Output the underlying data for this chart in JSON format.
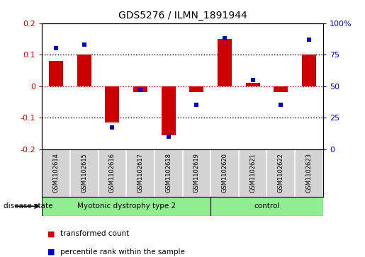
{
  "title": "GDS5276 / ILMN_1891944",
  "samples": [
    "GSM1102614",
    "GSM1102615",
    "GSM1102616",
    "GSM1102617",
    "GSM1102618",
    "GSM1102619",
    "GSM1102620",
    "GSM1102621",
    "GSM1102622",
    "GSM1102623"
  ],
  "red_values": [
    0.08,
    0.1,
    -0.115,
    -0.02,
    -0.155,
    -0.02,
    0.15,
    0.01,
    -0.02,
    0.1
  ],
  "blue_values": [
    80,
    83,
    17,
    47,
    10,
    35,
    88,
    55,
    35,
    87
  ],
  "ylim_left": [
    -0.2,
    0.2
  ],
  "ylim_right": [
    0,
    100
  ],
  "yticks_left": [
    -0.2,
    -0.1,
    0.0,
    0.1,
    0.2
  ],
  "yticks_right": [
    0,
    25,
    50,
    75,
    100
  ],
  "ytick_labels_left": [
    "-0.2",
    "-0.1",
    "0",
    "0.1",
    "0.2"
  ],
  "ytick_labels_right": [
    "0",
    "25",
    "50",
    "75",
    "100%"
  ],
  "groups": [
    {
      "label": "Myotonic dystrophy type 2",
      "start": 0,
      "end": 6,
      "color": "#90EE90"
    },
    {
      "label": "control",
      "start": 6,
      "end": 10,
      "color": "#90EE90"
    }
  ],
  "disease_state_label": "disease state",
  "red_color": "#CC0000",
  "blue_color": "#0000CC",
  "bar_width": 0.5,
  "blue_marker_size": 5,
  "legend_items": [
    {
      "label": "transformed count",
      "color": "#CC0000"
    },
    {
      "label": "percentile rank within the sample",
      "color": "#0000CC"
    }
  ],
  "background_color": "#ffffff",
  "plot_bg_color": "#ffffff",
  "label_area_color": "#d3d3d3",
  "dotted_line_color": "#000000",
  "red_dotted_color": "#CC0000"
}
